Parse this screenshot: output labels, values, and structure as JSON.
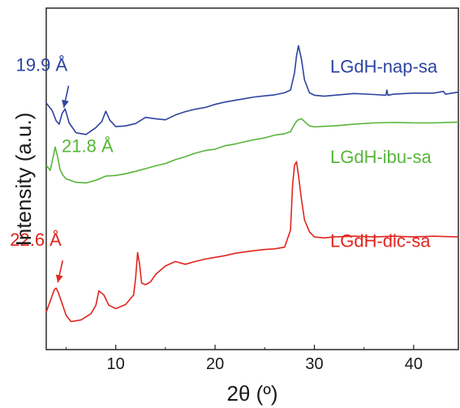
{
  "chart_data": {
    "type": "line",
    "xlabel": "2θ (º)",
    "ylabel": "Intensity (a.u.)",
    "xlim": [
      3,
      44.5
    ],
    "ylim": [
      0,
      1
    ],
    "xticks": [
      10,
      20,
      30,
      40
    ],
    "grid": false,
    "yticks_shown": false,
    "series": [
      {
        "name": "LGdH-nap-sa",
        "color": "#2d44a0",
        "x": [
          3.0,
          3.6,
          4.0,
          4.3,
          4.6,
          4.9,
          5.3,
          6.0,
          7.0,
          8.0,
          8.6,
          9.0,
          9.4,
          10.0,
          11.0,
          12.0,
          13.0,
          14.0,
          15.0,
          16.0,
          17.0,
          18.0,
          19.0,
          20.0,
          21.0,
          22.0,
          23.0,
          24.0,
          25.0,
          26.0,
          27.0,
          27.6,
          28.0,
          28.2,
          28.4,
          28.7,
          29.0,
          29.5,
          30.0,
          31.0,
          32.0,
          34.0,
          36.0,
          37.2,
          37.3,
          37.4,
          38.0,
          40.0,
          42.0,
          43.0,
          43.2,
          44.5
        ],
        "y": [
          0.722,
          0.7,
          0.67,
          0.66,
          0.692,
          0.705,
          0.664,
          0.635,
          0.63,
          0.65,
          0.668,
          0.698,
          0.672,
          0.653,
          0.655,
          0.662,
          0.68,
          0.676,
          0.673,
          0.687,
          0.697,
          0.704,
          0.709,
          0.718,
          0.725,
          0.73,
          0.735,
          0.74,
          0.743,
          0.746,
          0.752,
          0.76,
          0.81,
          0.86,
          0.89,
          0.85,
          0.79,
          0.752,
          0.745,
          0.742,
          0.745,
          0.75,
          0.747,
          0.745,
          0.76,
          0.745,
          0.748,
          0.751,
          0.751,
          0.756,
          0.748,
          0.754
        ]
      },
      {
        "name": "LGdH-ibu-sa",
        "color": "#58b53a",
        "x": [
          3.0,
          3.4,
          3.7,
          3.9,
          4.1,
          4.4,
          4.7,
          5.0,
          6.0,
          7.0,
          8.0,
          9.0,
          10.0,
          11.0,
          12.0,
          13.0,
          14.0,
          15.0,
          16.0,
          17.0,
          18.0,
          19.0,
          20.0,
          21.0,
          22.0,
          23.0,
          24.0,
          25.0,
          26.0,
          27.0,
          27.6,
          28.0,
          28.3,
          28.7,
          29.0,
          29.5,
          30.0,
          31.0,
          32.0,
          34.0,
          36.0,
          38.0,
          40.0,
          42.0,
          44.5
        ],
        "y": [
          0.54,
          0.525,
          0.565,
          0.593,
          0.57,
          0.527,
          0.51,
          0.5,
          0.49,
          0.488,
          0.496,
          0.508,
          0.51,
          0.515,
          0.522,
          0.53,
          0.538,
          0.545,
          0.556,
          0.565,
          0.575,
          0.583,
          0.587,
          0.597,
          0.602,
          0.609,
          0.615,
          0.62,
          0.628,
          0.632,
          0.638,
          0.66,
          0.672,
          0.676,
          0.668,
          0.655,
          0.652,
          0.654,
          0.655,
          0.66,
          0.664,
          0.665,
          0.664,
          0.664,
          0.666
        ]
      },
      {
        "name": "LGdH-dic-sa",
        "color": "#e0251f",
        "x": [
          3.0,
          3.5,
          3.8,
          4.0,
          4.2,
          4.6,
          5.0,
          5.5,
          6.5,
          7.5,
          8.0,
          8.3,
          8.8,
          9.3,
          10.0,
          11.0,
          11.8,
          12.0,
          12.2,
          12.4,
          12.6,
          13.0,
          13.5,
          14.0,
          15.0,
          16.0,
          17.0,
          18.0,
          19.0,
          20.0,
          21.0,
          22.0,
          23.0,
          24.0,
          25.0,
          26.0,
          27.0,
          27.6,
          27.8,
          28.0,
          28.2,
          28.4,
          28.7,
          29.0,
          29.5,
          30.0,
          31.0,
          32.0,
          34.0,
          36.0,
          38.0,
          40.0,
          42.0,
          44.5
        ],
        "y": [
          0.11,
          0.15,
          0.175,
          0.18,
          0.168,
          0.135,
          0.1,
          0.082,
          0.087,
          0.105,
          0.13,
          0.172,
          0.16,
          0.13,
          0.12,
          0.132,
          0.16,
          0.21,
          0.284,
          0.25,
          0.195,
          0.19,
          0.198,
          0.22,
          0.245,
          0.258,
          0.25,
          0.258,
          0.265,
          0.27,
          0.275,
          0.282,
          0.286,
          0.29,
          0.293,
          0.295,
          0.3,
          0.35,
          0.48,
          0.54,
          0.55,
          0.51,
          0.44,
          0.38,
          0.345,
          0.33,
          0.327,
          0.33,
          0.332,
          0.33,
          0.332,
          0.33,
          0.332,
          0.33
        ]
      }
    ],
    "annotations": [
      {
        "text": "19.9 Å",
        "series": 0,
        "x": 4.6,
        "arrow": true
      },
      {
        "text": "21.8 Å",
        "series": 1,
        "x": 3.9,
        "arrow": false
      },
      {
        "text": "22.6 Å",
        "series": 2,
        "x": 4.0,
        "arrow": true
      }
    ]
  }
}
